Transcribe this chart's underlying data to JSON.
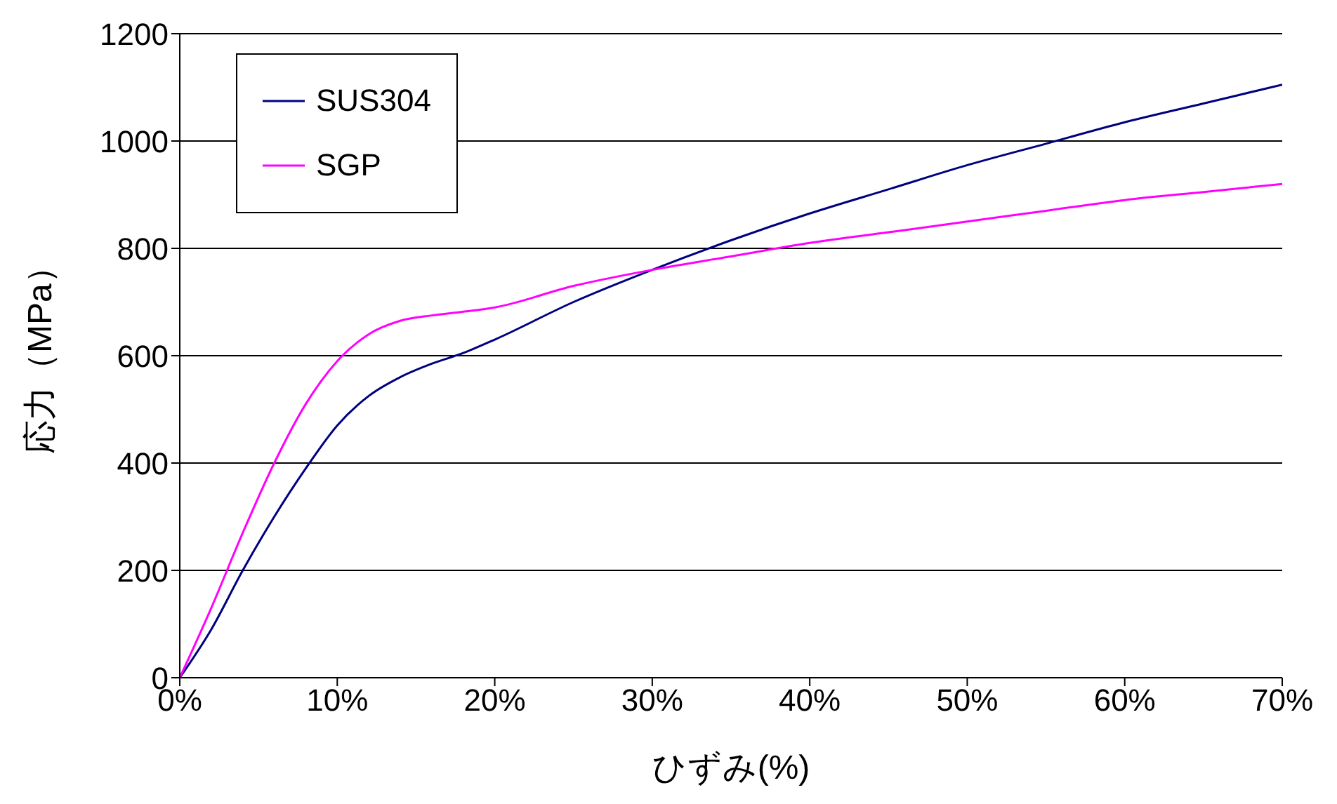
{
  "chart_data": {
    "type": "line",
    "xlabel": "ひずみ(%)",
    "ylabel": "応力（MPa）",
    "x": [
      0,
      2,
      4,
      6,
      8,
      10,
      12,
      14,
      16,
      18,
      20,
      25,
      30,
      35,
      40,
      45,
      50,
      55,
      60,
      65,
      70
    ],
    "series": [
      {
        "name": "SUS304",
        "color": "#000080",
        "values": [
          0,
          90,
          200,
          300,
          390,
          470,
          525,
          560,
          585,
          605,
          630,
          700,
          760,
          815,
          865,
          910,
          955,
          995,
          1035,
          1070,
          1105
        ]
      },
      {
        "name": "SGP",
        "color": "#ff00ff",
        "values": [
          0,
          130,
          270,
          400,
          510,
          590,
          640,
          665,
          675,
          682,
          690,
          730,
          760,
          785,
          810,
          830,
          850,
          870,
          890,
          905,
          920
        ]
      }
    ],
    "xlim": [
      0,
      70
    ],
    "xticks": [
      {
        "value": 0,
        "label": "0%"
      },
      {
        "value": 10,
        "label": "10%"
      },
      {
        "value": 20,
        "label": "20%"
      },
      {
        "value": 30,
        "label": "30%"
      },
      {
        "value": 40,
        "label": "40%"
      },
      {
        "value": 50,
        "label": "50%"
      },
      {
        "value": 60,
        "label": "60%"
      },
      {
        "value": 70,
        "label": "70%"
      }
    ],
    "ylim": [
      0,
      1200
    ],
    "yticks": [
      0,
      200,
      400,
      600,
      800,
      1000,
      1200
    ],
    "grid": "y",
    "legend": "top left",
    "marker": "none",
    "line_style": "solid"
  }
}
